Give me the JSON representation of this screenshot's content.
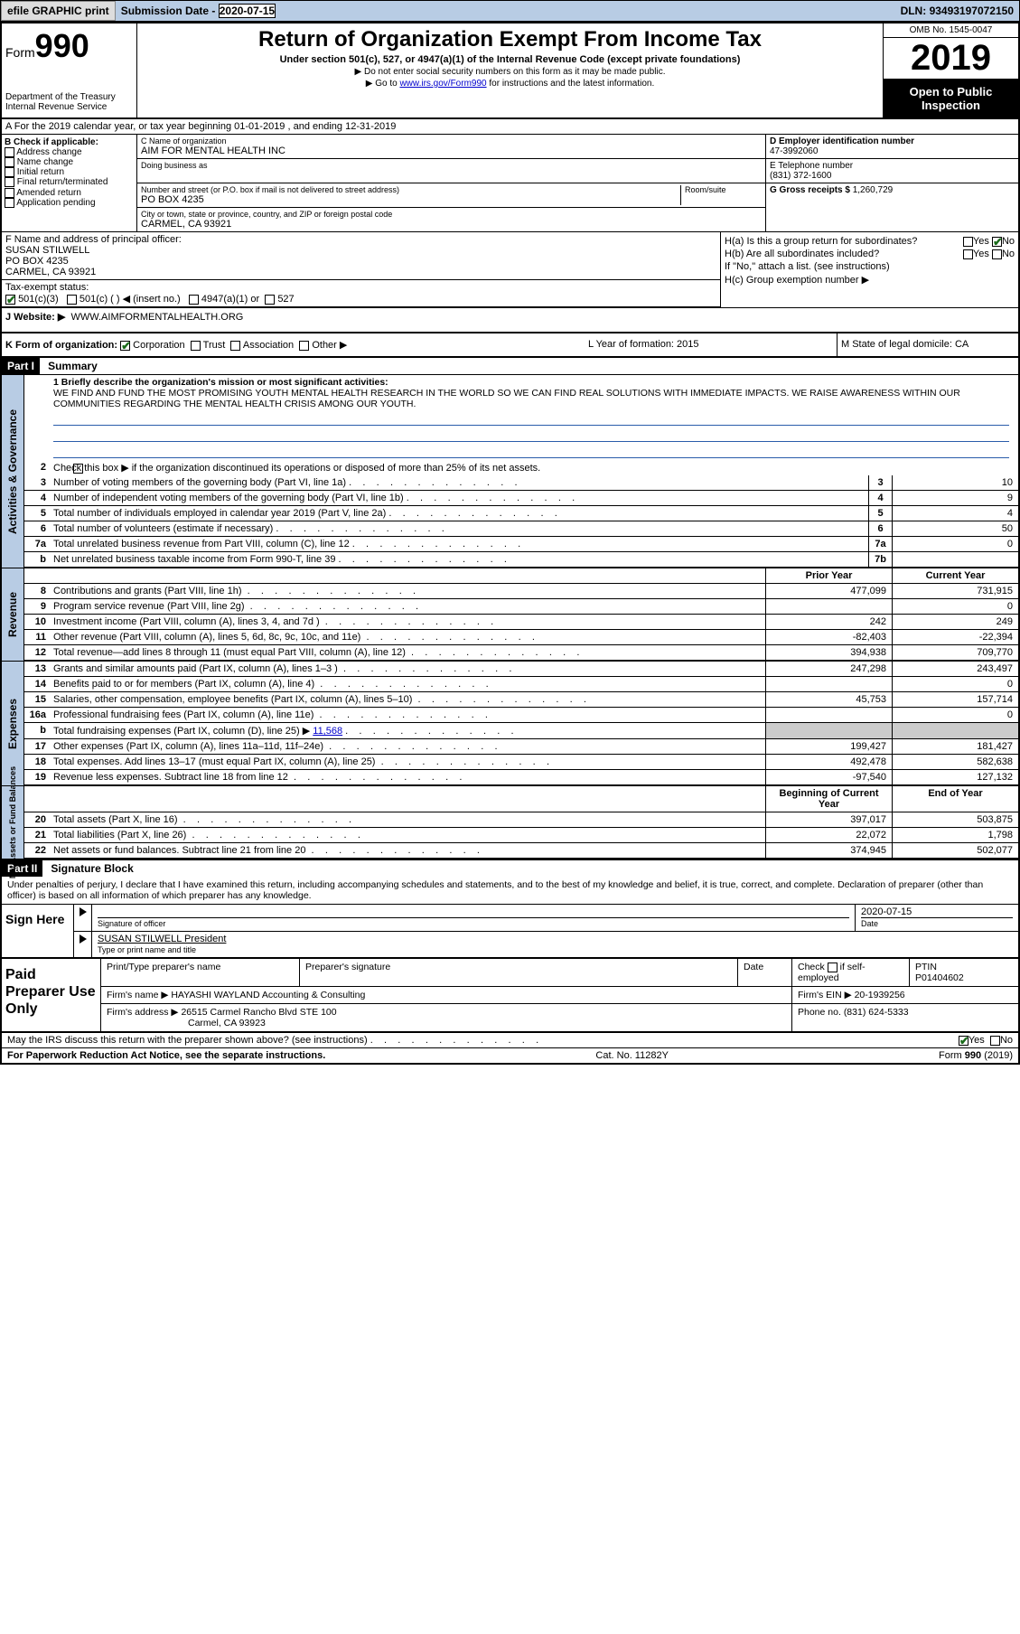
{
  "topbar": {
    "efile": "efile GRAPHIC print",
    "subdate_label": "Submission Date - ",
    "subdate": "2020-07-15",
    "dln_label": "DLN: ",
    "dln": "93493197072150"
  },
  "hdr": {
    "form_word": "Form",
    "form_num": "990",
    "dept": "Department of the Treasury\nInternal Revenue Service",
    "title": "Return of Organization Exempt From Income Tax",
    "sub": "Under section 501(c), 527, or 4947(a)(1) of the Internal Revenue Code (except private foundations)",
    "note1": "▶ Do not enter social security numbers on this form as it may be made public.",
    "note2_pre": "▶ Go to ",
    "note2_link": "www.irs.gov/Form990",
    "note2_post": " for instructions and the latest information.",
    "omb": "OMB No. 1545-0047",
    "year": "2019",
    "openpub": "Open to Public Inspection"
  },
  "lineA": "A For the 2019 calendar year, or tax year beginning 01-01-2019     , and ending 12-31-2019",
  "B": {
    "label": "B Check if applicable:",
    "opts": [
      "Address change",
      "Name change",
      "Initial return",
      "Final return/terminated",
      "Amended return",
      "Application pending"
    ]
  },
  "C": {
    "name_label": "C Name of organization",
    "name": "AIM FOR MENTAL HEALTH INC",
    "dba_label": "Doing business as",
    "dba": "",
    "addr_label": "Number and street (or P.O. box if mail is not delivered to street address)",
    "room_label": "Room/suite",
    "addr": "PO BOX 4235",
    "city_label": "City or town, state or province, country, and ZIP or foreign postal code",
    "city": "CARMEL, CA  93921"
  },
  "D": {
    "label": "D Employer identification number",
    "val": "47-3992060"
  },
  "E": {
    "label": "E Telephone number",
    "val": "(831) 372-1600"
  },
  "G": {
    "label": "G Gross receipts $ ",
    "val": "1,260,729"
  },
  "F": {
    "label": "F  Name and address of principal officer:",
    "name": "SUSAN STILWELL",
    "addr1": "PO BOX 4235",
    "addr2": "CARMEL, CA  93921"
  },
  "H": {
    "a": "H(a)  Is this a group return for subordinates?",
    "a_yes": "Yes",
    "a_no": "No",
    "b": "H(b)  Are all subordinates included?",
    "b_note": "If \"No,\" attach a list. (see instructions)",
    "c": "H(c)  Group exemption number ▶"
  },
  "tax": {
    "label": "Tax-exempt status:",
    "o1": "501(c)(3)",
    "o2": "501(c) (   ) ◀ (insert no.)",
    "o3": "4947(a)(1) or",
    "o4": "527"
  },
  "J": {
    "label": "J   Website: ▶",
    "val": "WWW.AIMFORMENTALHEALTH.ORG"
  },
  "K": {
    "label": "K Form of organization:",
    "o1": "Corporation",
    "o2": "Trust",
    "o3": "Association",
    "o4": "Other ▶",
    "L": "L Year of formation: 2015",
    "M": "M State of legal domicile: CA"
  },
  "part1": {
    "hdr": "Part I",
    "title": "Summary",
    "l1_label": "1  Briefly describe the organization's mission or most significant activities:",
    "l1_text": "WE FIND AND FUND THE MOST PROMISING YOUTH MENTAL HEALTH RESEARCH IN THE WORLD SO WE CAN FIND REAL SOLUTIONS WITH IMMEDIATE IMPACTS. WE RAISE AWARENESS WITHIN OUR COMMUNITIES REGARDING THE MENTAL HEALTH CRISIS AMONG OUR YOUTH.",
    "l2": "Check this box ▶      if the organization discontinued its operations or disposed of more than 25% of its net assets.",
    "rows_gov": [
      {
        "n": "3",
        "t": "Number of voting members of the governing body (Part VI, line 1a)",
        "bn": "3",
        "v": "10"
      },
      {
        "n": "4",
        "t": "Number of independent voting members of the governing body (Part VI, line 1b)",
        "bn": "4",
        "v": "9"
      },
      {
        "n": "5",
        "t": "Total number of individuals employed in calendar year 2019 (Part V, line 2a)",
        "bn": "5",
        "v": "4"
      },
      {
        "n": "6",
        "t": "Total number of volunteers (estimate if necessary)",
        "bn": "6",
        "v": "50"
      },
      {
        "n": "7a",
        "t": "Total unrelated business revenue from Part VIII, column (C), line 12",
        "bn": "7a",
        "v": "0"
      },
      {
        "n": "b",
        "t": "Net unrelated business taxable income from Form 990-T, line 39",
        "bn": "7b",
        "v": ""
      }
    ],
    "py_label": "Prior Year",
    "cy_label": "Current Year",
    "rows_rev": [
      {
        "n": "8",
        "t": "Contributions and grants (Part VIII, line 1h)",
        "py": "477,099",
        "cy": "731,915"
      },
      {
        "n": "9",
        "t": "Program service revenue (Part VIII, line 2g)",
        "py": "",
        "cy": "0"
      },
      {
        "n": "10",
        "t": "Investment income (Part VIII, column (A), lines 3, 4, and 7d )",
        "py": "242",
        "cy": "249"
      },
      {
        "n": "11",
        "t": "Other revenue (Part VIII, column (A), lines 5, 6d, 8c, 9c, 10c, and 11e)",
        "py": "-82,403",
        "cy": "-22,394"
      },
      {
        "n": "12",
        "t": "Total revenue—add lines 8 through 11 (must equal Part VIII, column (A), line 12)",
        "py": "394,938",
        "cy": "709,770"
      }
    ],
    "rows_exp": [
      {
        "n": "13",
        "t": "Grants and similar amounts paid (Part IX, column (A), lines 1–3 )",
        "py": "247,298",
        "cy": "243,497"
      },
      {
        "n": "14",
        "t": "Benefits paid to or for members (Part IX, column (A), line 4)",
        "py": "",
        "cy": "0"
      },
      {
        "n": "15",
        "t": "Salaries, other compensation, employee benefits (Part IX, column (A), lines 5–10)",
        "py": "45,753",
        "cy": "157,714"
      },
      {
        "n": "16a",
        "t": "Professional fundraising fees (Part IX, column (A), line 11e)",
        "py": "",
        "cy": "0"
      },
      {
        "n": "b",
        "t": "Total fundraising expenses (Part IX, column (D), line 25) ▶",
        "py": "SHADE",
        "cy": "SHADE",
        "extra": "11,568"
      },
      {
        "n": "17",
        "t": "Other expenses (Part IX, column (A), lines 11a–11d, 11f–24e)",
        "py": "199,427",
        "cy": "181,427"
      },
      {
        "n": "18",
        "t": "Total expenses. Add lines 13–17 (must equal Part IX, column (A), line 25)",
        "py": "492,478",
        "cy": "582,638"
      },
      {
        "n": "19",
        "t": "Revenue less expenses. Subtract line 18 from line 12",
        "py": "-97,540",
        "cy": "127,132"
      }
    ],
    "boy_label": "Beginning of Current Year",
    "eoy_label": "End of Year",
    "rows_net": [
      {
        "n": "20",
        "t": "Total assets (Part X, line 16)",
        "py": "397,017",
        "cy": "503,875"
      },
      {
        "n": "21",
        "t": "Total liabilities (Part X, line 26)",
        "py": "22,072",
        "cy": "1,798"
      },
      {
        "n": "22",
        "t": "Net assets or fund balances. Subtract line 21 from line 20",
        "py": "374,945",
        "cy": "502,077"
      }
    ],
    "vtab_gov": "Activities & Governance",
    "vtab_rev": "Revenue",
    "vtab_exp": "Expenses",
    "vtab_net": "Net Assets or Fund Balances"
  },
  "part2": {
    "hdr": "Part II",
    "title": "Signature Block",
    "para": "Under penalties of perjury, I declare that I have examined this return, including accompanying schedules and statements, and to the best of my knowledge and belief, it is true, correct, and complete. Declaration of preparer (other than officer) is based on all information of which preparer has any knowledge.",
    "sign_here": "Sign Here",
    "sig_officer": "Signature of officer",
    "sig_date_lbl": "Date",
    "sig_date": "2020-07-15",
    "officer_name": "SUSAN STILWELL  President",
    "officer_name_lbl": "Type or print name and title",
    "paid": "Paid Preparer Use Only",
    "pp_name_lbl": "Print/Type preparer's name",
    "pp_sig_lbl": "Preparer's signature",
    "pp_date_lbl": "Date",
    "pp_self": "Check       if self-employed",
    "pp_ptin_lbl": "PTIN",
    "pp_ptin": "P01404602",
    "firm_name_lbl": "Firm's name    ▶",
    "firm_name": "HAYASHI WAYLAND Accounting & Consulting",
    "firm_ein_lbl": "Firm's EIN ▶",
    "firm_ein": "20-1939256",
    "firm_addr_lbl": "Firm's address ▶",
    "firm_addr1": "26515 Carmel Rancho Blvd STE 100",
    "firm_addr2": "Carmel, CA  93923",
    "firm_phone_lbl": "Phone no.",
    "firm_phone": "(831) 624-5333",
    "discuss": "May the IRS discuss this return with the preparer shown above? (see instructions)",
    "yes": "Yes",
    "no": "No"
  },
  "footer": {
    "l": "For Paperwork Reduction Act Notice, see the separate instructions.",
    "m": "Cat. No. 11282Y",
    "r": "Form 990 (2019)"
  }
}
